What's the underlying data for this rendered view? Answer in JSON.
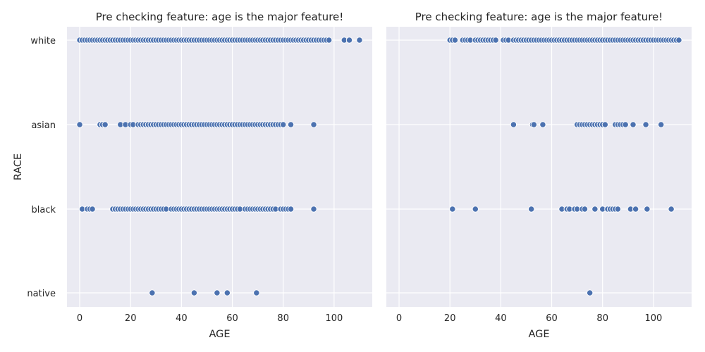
{
  "chart_data": [
    {
      "type": "scatter",
      "title": "Pre checking feature: age is the major feature!",
      "xlabel": "AGE",
      "ylabel": "RACE",
      "categories": [
        "white",
        "asian",
        "black",
        "native"
      ],
      "xlim": [
        -5,
        115
      ],
      "xticks": [
        0,
        20,
        40,
        60,
        80,
        100
      ],
      "grid": true,
      "color": "#4c72b0",
      "series": [
        {
          "category": "white",
          "x": [
            0,
            1,
            2,
            3,
            4,
            5,
            6,
            7,
            8,
            9,
            10,
            11,
            12,
            13,
            14,
            15,
            16,
            17,
            18,
            19,
            20,
            21,
            22,
            23,
            24,
            25,
            26,
            27,
            28,
            29,
            30,
            31,
            32,
            33,
            34,
            35,
            36,
            37,
            38,
            39,
            40,
            41,
            42,
            43,
            44,
            45,
            46,
            47,
            48,
            49,
            50,
            51,
            52,
            53,
            54,
            55,
            56,
            57,
            58,
            59,
            60,
            61,
            62,
            63,
            64,
            65,
            66,
            67,
            68,
            69,
            70,
            71,
            72,
            73,
            74,
            75,
            76,
            77,
            78,
            79,
            80,
            81,
            82,
            83,
            84,
            85,
            86,
            87,
            88,
            89,
            90,
            91,
            92,
            93,
            94,
            95,
            96,
            97,
            98,
            104,
            106,
            110
          ]
        },
        {
          "category": "asian",
          "x": [
            0,
            8,
            9,
            10,
            16,
            18,
            20,
            21,
            23,
            24,
            25,
            26,
            27,
            28,
            29,
            30,
            31,
            32,
            33,
            34,
            35,
            36,
            37,
            38,
            39,
            40,
            41,
            42,
            43,
            44,
            45,
            46,
            47,
            48,
            49,
            50,
            51,
            52,
            53,
            54,
            55,
            56,
            57,
            58,
            59,
            60,
            61,
            62,
            63,
            64,
            65,
            66,
            67,
            68,
            69,
            70,
            71,
            72,
            73,
            74,
            75,
            76,
            77,
            78,
            79,
            80,
            83,
            92
          ]
        },
        {
          "category": "black",
          "x": [
            1,
            3,
            4,
            5,
            13,
            14,
            15,
            16,
            17,
            18,
            19,
            20,
            21,
            22,
            23,
            24,
            25,
            26,
            27,
            28,
            29,
            30,
            31,
            32,
            33,
            34,
            36,
            37,
            38,
            39,
            40,
            41,
            42,
            43,
            44,
            45,
            46,
            47,
            48,
            49,
            50,
            51,
            52,
            53,
            54,
            55,
            56,
            57,
            58,
            59,
            60,
            61,
            62,
            63,
            65,
            66,
            67,
            68,
            69,
            70,
            71,
            72,
            73,
            74,
            75,
            76,
            77,
            79,
            80,
            81,
            82,
            83,
            92
          ]
        },
        {
          "category": "native",
          "x": [
            28.5,
            45,
            54,
            58,
            69.5
          ]
        }
      ]
    },
    {
      "type": "scatter",
      "title": "Pre checking feature: age is the major feature!",
      "xlabel": "AGE",
      "ylabel": "",
      "categories": [
        "white",
        "asian",
        "black",
        "native"
      ],
      "xlim": [
        -5,
        115
      ],
      "xticks": [
        0,
        20,
        40,
        60,
        80,
        100
      ],
      "grid": true,
      "color": "#4c72b0",
      "series": [
        {
          "category": "white",
          "x": [
            20,
            21,
            22,
            25,
            26,
            27,
            28,
            30,
            31,
            32,
            33,
            34,
            35,
            36,
            37,
            38,
            41,
            42,
            43,
            45,
            46,
            47,
            48,
            49,
            50,
            51,
            52,
            53,
            54,
            55,
            56,
            57,
            58,
            59,
            60,
            61,
            62,
            63,
            64,
            65,
            66,
            67,
            68,
            69,
            70,
            71,
            72,
            73,
            74,
            75,
            76,
            77,
            78,
            79,
            80,
            81,
            82,
            83,
            84,
            85,
            86,
            87,
            88,
            89,
            90,
            91,
            92,
            93,
            94,
            95,
            96,
            97,
            98,
            99,
            100,
            101,
            102,
            103,
            104,
            105,
            106,
            107,
            108,
            109,
            110
          ]
        },
        {
          "category": "asian",
          "x": [
            45,
            52.5,
            53,
            56.5,
            70,
            71,
            72,
            73,
            74,
            75,
            76,
            77,
            78,
            79,
            80,
            81,
            85,
            86,
            87,
            88,
            89,
            92,
            97,
            103
          ]
        },
        {
          "category": "black",
          "x": [
            21,
            30,
            52,
            64,
            66,
            67,
            69,
            70,
            72,
            73,
            77,
            80,
            82,
            83,
            84,
            85,
            86,
            91,
            93,
            97.5,
            107
          ]
        },
        {
          "category": "native",
          "x": [
            75
          ]
        }
      ]
    }
  ]
}
